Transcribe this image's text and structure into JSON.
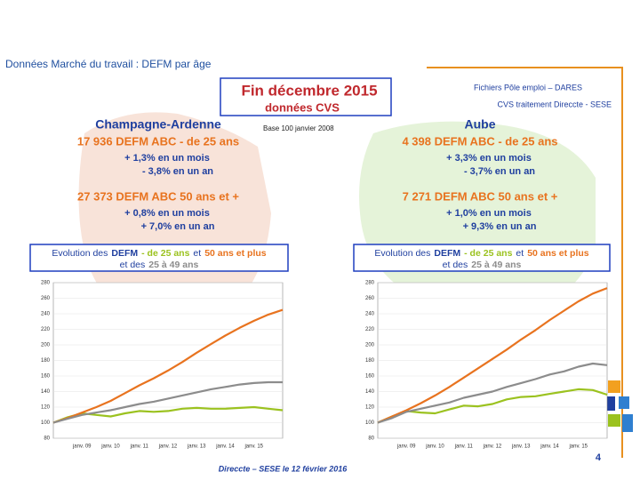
{
  "header": {
    "title": "Données Marché du travail : DEFM par âge",
    "box_title": "Fin  décembre  2015",
    "box_subtitle": "données CVS",
    "source_1": "Fichiers Pôle emploi – DARES",
    "source_2": "CVS traitement Direccte - SESE",
    "base": "Base 100 janvier 2008"
  },
  "regions": [
    {
      "name": "Champagne-Ardenne",
      "stats": [
        {
          "headline": "17 936  DEFM ABC - de 25 ans",
          "month": "+ 1,3% en un mois",
          "year": "- 3,8% en un an"
        },
        {
          "headline": "27 373  DEFM ABC 50 ans et +",
          "month": "+ 0,8% en un mois",
          "year": "+ 7,0% en un an"
        }
      ]
    },
    {
      "name": "Aube",
      "stats": [
        {
          "headline": "4 398  DEFM ABC - de 25 ans",
          "month": "+ 3,3% en un mois",
          "year": "- 3,7% en un an"
        },
        {
          "headline": "7 271  DEFM ABC 50 ans et +",
          "month": "+ 1,0% en un mois",
          "year": "+ 9,3% en un an"
        }
      ]
    }
  ],
  "chart_data": [
    {
      "type": "line",
      "title_prefix": "Evolution des",
      "title_bold": "DEFM",
      "connector_1": "et",
      "connector_2": "et des",
      "categories": [
        null,
        null,
        "janv. 09",
        null,
        "janv. 10",
        null,
        "janv. 11",
        null,
        "janv. 12",
        null,
        "janv. 13",
        null,
        "janv. 14",
        null,
        "janv. 15",
        null,
        null
      ],
      "series": [
        {
          "name": "- de 25 ans",
          "color": "#9bc21f",
          "values": [
            100,
            107,
            112,
            110,
            108,
            112,
            115,
            114,
            115,
            118,
            119,
            118,
            118,
            119,
            120,
            118,
            116
          ]
        },
        {
          "name": "50 ans et plus",
          "color": "#e8731f",
          "values": [
            100,
            106,
            113,
            120,
            128,
            138,
            148,
            157,
            167,
            178,
            190,
            201,
            212,
            222,
            231,
            239,
            245
          ]
        },
        {
          "name": "25 à 49 ans",
          "color": "#8c8c8c",
          "values": [
            100,
            105,
            110,
            113,
            116,
            120,
            124,
            127,
            131,
            135,
            139,
            143,
            146,
            149,
            151,
            152,
            152
          ]
        }
      ],
      "ylim": [
        80,
        280
      ],
      "yticks": [
        80,
        100,
        120,
        140,
        160,
        180,
        200,
        220,
        240,
        260,
        280
      ],
      "grid": true
    },
    {
      "type": "line",
      "title_prefix": "Evolution des",
      "title_bold": "DEFM",
      "connector_1": "et",
      "connector_2": "et des",
      "categories": [
        null,
        null,
        "janv. 09",
        null,
        "janv. 10",
        null,
        "janv. 11",
        null,
        "janv. 12",
        null,
        "janv. 13",
        null,
        "janv. 14",
        null,
        "janv. 15",
        null,
        null
      ],
      "series": [
        {
          "name": "- de 25 ans",
          "color": "#9bc21f",
          "values": [
            100,
            108,
            115,
            113,
            112,
            117,
            122,
            121,
            124,
            130,
            133,
            134,
            137,
            140,
            143,
            142,
            136
          ]
        },
        {
          "name": "50 ans et plus",
          "color": "#e8731f",
          "values": [
            100,
            108,
            116,
            125,
            135,
            146,
            158,
            170,
            182,
            194,
            207,
            219,
            232,
            244,
            256,
            266,
            273
          ]
        },
        {
          "name": "25 à 49 ans",
          "color": "#8c8c8c",
          "values": [
            100,
            106,
            114,
            118,
            122,
            126,
            132,
            136,
            140,
            146,
            151,
            156,
            162,
            166,
            172,
            176,
            174
          ]
        }
      ],
      "ylim": [
        80,
        280
      ],
      "yticks": [
        80,
        100,
        120,
        140,
        160,
        180,
        200,
        220,
        240,
        260,
        280
      ],
      "grid": true
    }
  ],
  "footer": {
    "text": "Direccte – SESE le 12 février 2016",
    "page": "4"
  }
}
